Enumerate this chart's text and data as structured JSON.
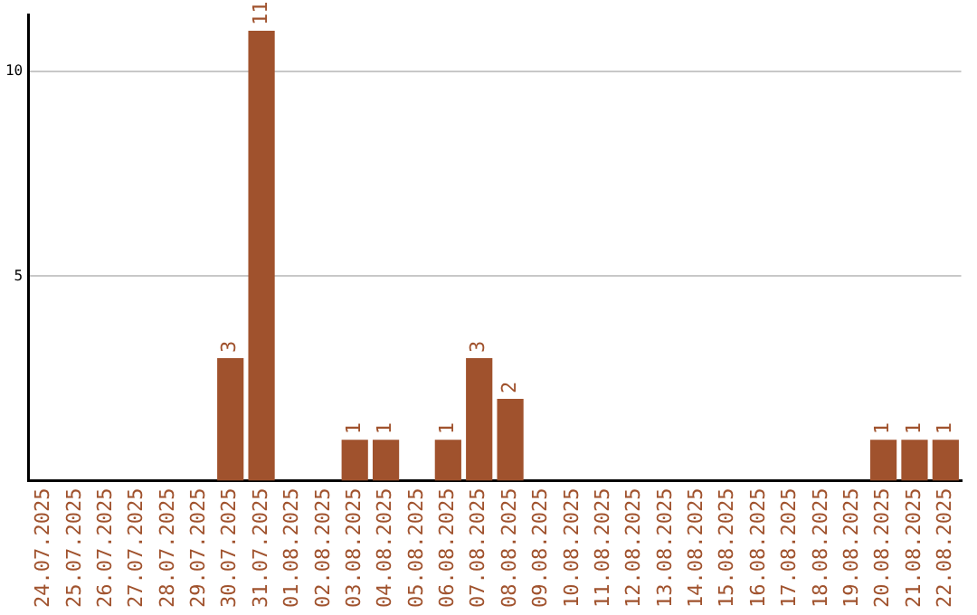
{
  "chart_data": {
    "type": "bar",
    "categories": [
      "24.07.2025",
      "25.07.2025",
      "26.07.2025",
      "27.07.2025",
      "28.07.2025",
      "29.07.2025",
      "30.07.2025",
      "31.07.2025",
      "01.08.2025",
      "02.08.2025",
      "03.08.2025",
      "04.08.2025",
      "05.08.2025",
      "06.08.2025",
      "07.08.2025",
      "08.08.2025",
      "09.08.2025",
      "10.08.2025",
      "11.08.2025",
      "12.08.2025",
      "13.08.2025",
      "14.08.2025",
      "15.08.2025",
      "16.08.2025",
      "17.08.2025",
      "18.08.2025",
      "19.08.2025",
      "20.08.2025",
      "21.08.2025",
      "22.08.2025"
    ],
    "values": [
      0,
      0,
      0,
      0,
      0,
      0,
      3,
      11,
      0,
      0,
      1,
      1,
      0,
      1,
      3,
      2,
      0,
      0,
      0,
      0,
      0,
      0,
      0,
      0,
      0,
      0,
      0,
      1,
      1,
      1
    ],
    "value_labels": [
      null,
      null,
      null,
      null,
      null,
      null,
      "3",
      "11",
      null,
      null,
      "1",
      "1",
      null,
      "1",
      "3",
      "2",
      null,
      null,
      null,
      null,
      null,
      null,
      null,
      null,
      null,
      null,
      null,
      "1",
      "1",
      "1"
    ],
    "color": "#a0522d",
    "ylim": [
      0,
      11.4
    ],
    "yticks": [
      5,
      10
    ],
    "grid": "y",
    "legend": false
  }
}
